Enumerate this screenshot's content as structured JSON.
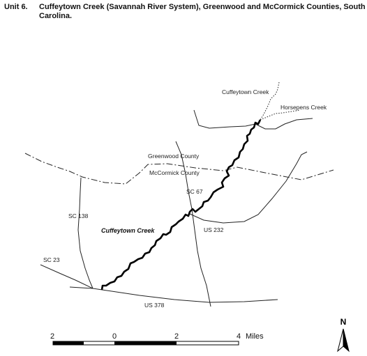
{
  "header": {
    "unit": "Unit 6.",
    "title": "Cuffeytown Creek (Savannah River System), Greenwood and McCormick Counties, South Carolina."
  },
  "map": {
    "labels": {
      "cuffeytown_creek_upper": "Cuffeytown Creek",
      "horsepens_creek": "Horsepens Creek",
      "greenwood_county": "Greenwood County",
      "mccormick_county": "McCormick County",
      "sc67": "SC 67",
      "sc138": "SC 138",
      "cuffeytown_creek_main": "Cuffeytown Creek",
      "us232": "US 232",
      "sc23": "SC 23",
      "us378": "US 378"
    }
  },
  "scale_bar": {
    "ticks": [
      "2",
      "0",
      "2",
      "4"
    ],
    "unit": "Miles"
  },
  "north_arrow": {
    "label": "N"
  }
}
